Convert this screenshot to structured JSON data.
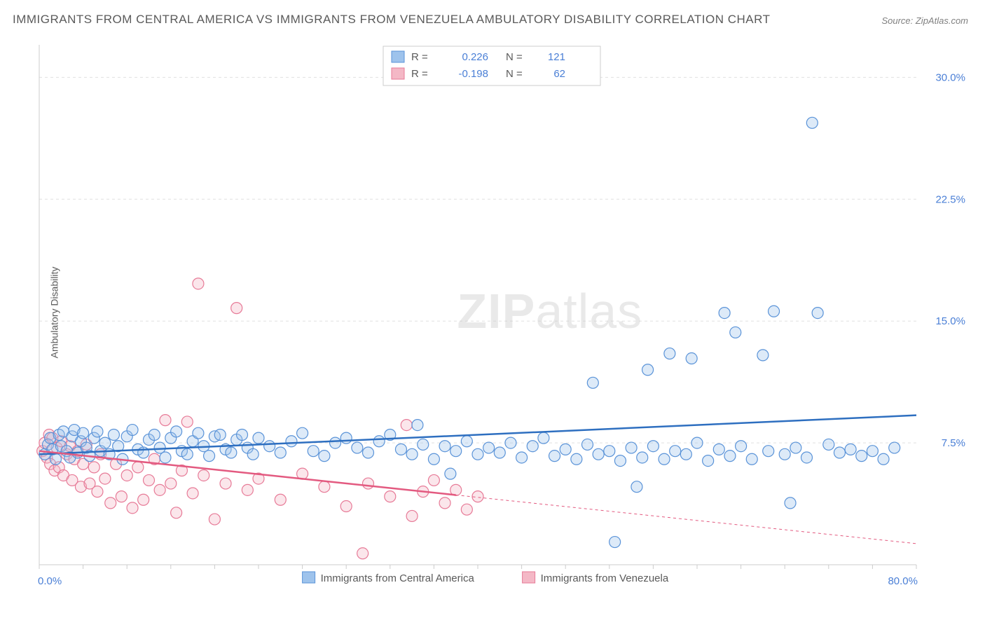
{
  "title": "IMMIGRANTS FROM CENTRAL AMERICA VS IMMIGRANTS FROM VENEZUELA AMBULATORY DISABILITY CORRELATION CHART",
  "source": "Source: ZipAtlas.com",
  "ylabel": "Ambulatory Disability",
  "watermark_a": "ZIP",
  "watermark_b": "atlas",
  "chart": {
    "type": "scatter",
    "xlim": [
      0,
      80
    ],
    "ylim": [
      0,
      32
    ],
    "yticks": [
      7.5,
      15.0,
      22.5,
      30.0
    ],
    "ytick_labels": [
      "7.5%",
      "15.0%",
      "22.5%",
      "30.0%"
    ],
    "xtick_left": "0.0%",
    "xtick_right": "80.0%",
    "xticks_minor": [
      0,
      4,
      8,
      12,
      16,
      20,
      24,
      28,
      32,
      36,
      40,
      44,
      48,
      52,
      56,
      60,
      64,
      68,
      72,
      76,
      80
    ],
    "marker_radius": 8,
    "background": "#ffffff",
    "grid_color": "#e0e0e0",
    "axis_color": "#cccccc",
    "series": [
      {
        "name": "Immigrants from Central America",
        "fill": "#9ec3ec",
        "stroke": "#5a93d8",
        "trend_color": "#2e6fc0",
        "R": "0.226",
        "N": "121",
        "trend": {
          "x1": 0,
          "y1": 6.8,
          "x2": 80,
          "y2": 9.2,
          "solid_to_x": 80
        },
        "points": [
          [
            0.5,
            6.8
          ],
          [
            0.8,
            7.4
          ],
          [
            1.0,
            7.8
          ],
          [
            1.2,
            7.1
          ],
          [
            1.5,
            6.5
          ],
          [
            1.8,
            8.0
          ],
          [
            2.0,
            7.3
          ],
          [
            2.2,
            8.2
          ],
          [
            2.5,
            7.0
          ],
          [
            2.8,
            6.6
          ],
          [
            3.0,
            7.9
          ],
          [
            3.2,
            8.3
          ],
          [
            3.5,
            6.9
          ],
          [
            3.8,
            7.6
          ],
          [
            4.0,
            8.1
          ],
          [
            4.3,
            7.2
          ],
          [
            4.6,
            6.7
          ],
          [
            5.0,
            7.8
          ],
          [
            5.3,
            8.2
          ],
          [
            5.6,
            7.0
          ],
          [
            6.0,
            7.5
          ],
          [
            6.4,
            6.8
          ],
          [
            6.8,
            8.0
          ],
          [
            7.2,
            7.3
          ],
          [
            7.6,
            6.5
          ],
          [
            8.0,
            7.9
          ],
          [
            8.5,
            8.3
          ],
          [
            9.0,
            7.1
          ],
          [
            9.5,
            6.9
          ],
          [
            10.0,
            7.7
          ],
          [
            10.5,
            8.0
          ],
          [
            11.0,
            7.2
          ],
          [
            11.5,
            6.6
          ],
          [
            12.0,
            7.8
          ],
          [
            12.5,
            8.2
          ],
          [
            13.0,
            7.0
          ],
          [
            13.5,
            6.8
          ],
          [
            14.0,
            7.6
          ],
          [
            14.5,
            8.1
          ],
          [
            15.0,
            7.3
          ],
          [
            15.5,
            6.7
          ],
          [
            16.0,
            7.9
          ],
          [
            16.5,
            8.0
          ],
          [
            17.0,
            7.1
          ],
          [
            17.5,
            6.9
          ],
          [
            18.0,
            7.7
          ],
          [
            18.5,
            8.0
          ],
          [
            19.0,
            7.2
          ],
          [
            19.5,
            6.8
          ],
          [
            20.0,
            7.8
          ],
          [
            21.0,
            7.3
          ],
          [
            22.0,
            6.9
          ],
          [
            23.0,
            7.6
          ],
          [
            24.0,
            8.1
          ],
          [
            25.0,
            7.0
          ],
          [
            26.0,
            6.7
          ],
          [
            27.0,
            7.5
          ],
          [
            28.0,
            7.8
          ],
          [
            29.0,
            7.2
          ],
          [
            30.0,
            6.9
          ],
          [
            31.0,
            7.6
          ],
          [
            32.0,
            8.0
          ],
          [
            33.0,
            7.1
          ],
          [
            34.0,
            6.8
          ],
          [
            34.5,
            8.6
          ],
          [
            35.0,
            7.4
          ],
          [
            36.0,
            6.5
          ],
          [
            37.0,
            7.3
          ],
          [
            37.5,
            5.6
          ],
          [
            38.0,
            7.0
          ],
          [
            39.0,
            7.6
          ],
          [
            40.0,
            6.8
          ],
          [
            41.0,
            7.2
          ],
          [
            42.0,
            6.9
          ],
          [
            43.0,
            7.5
          ],
          [
            44.0,
            6.6
          ],
          [
            45.0,
            7.3
          ],
          [
            46.0,
            7.8
          ],
          [
            47.0,
            6.7
          ],
          [
            48.0,
            7.1
          ],
          [
            49.0,
            6.5
          ],
          [
            50.0,
            7.4
          ],
          [
            50.5,
            11.2
          ],
          [
            51.0,
            6.8
          ],
          [
            52.0,
            7.0
          ],
          [
            52.5,
            1.4
          ],
          [
            53.0,
            6.4
          ],
          [
            54.0,
            7.2
          ],
          [
            54.5,
            4.8
          ],
          [
            55.0,
            6.6
          ],
          [
            55.5,
            12.0
          ],
          [
            56.0,
            7.3
          ],
          [
            57.0,
            6.5
          ],
          [
            57.5,
            13.0
          ],
          [
            58.0,
            7.0
          ],
          [
            59.0,
            6.8
          ],
          [
            59.5,
            12.7
          ],
          [
            60.0,
            7.5
          ],
          [
            61.0,
            6.4
          ],
          [
            62.0,
            7.1
          ],
          [
            62.5,
            15.5
          ],
          [
            63.0,
            6.7
          ],
          [
            63.5,
            14.3
          ],
          [
            64.0,
            7.3
          ],
          [
            65.0,
            6.5
          ],
          [
            66.0,
            12.9
          ],
          [
            66.5,
            7.0
          ],
          [
            67.0,
            15.6
          ],
          [
            68.0,
            6.8
          ],
          [
            68.5,
            3.8
          ],
          [
            69.0,
            7.2
          ],
          [
            70.0,
            6.6
          ],
          [
            70.5,
            27.2
          ],
          [
            71.0,
            15.5
          ],
          [
            72.0,
            7.4
          ],
          [
            73.0,
            6.9
          ],
          [
            74.0,
            7.1
          ],
          [
            75.0,
            6.7
          ],
          [
            76.0,
            7.0
          ],
          [
            77.0,
            6.5
          ],
          [
            78.0,
            7.2
          ]
        ]
      },
      {
        "name": "Immigrants from Venezuela",
        "fill": "#f4b8c6",
        "stroke": "#e77a97",
        "trend_color": "#e35a80",
        "R": "-0.198",
        "N": "62",
        "trend": {
          "x1": 0,
          "y1": 7.0,
          "x2": 80,
          "y2": 1.3,
          "solid_to_x": 38
        },
        "points": [
          [
            0.3,
            7.0
          ],
          [
            0.5,
            7.5
          ],
          [
            0.7,
            6.6
          ],
          [
            0.9,
            8.0
          ],
          [
            1.0,
            6.2
          ],
          [
            1.2,
            7.8
          ],
          [
            1.4,
            5.8
          ],
          [
            1.6,
            7.2
          ],
          [
            1.8,
            6.0
          ],
          [
            2.0,
            7.6
          ],
          [
            2.2,
            5.5
          ],
          [
            2.5,
            6.8
          ],
          [
            2.8,
            7.3
          ],
          [
            3.0,
            5.2
          ],
          [
            3.2,
            6.5
          ],
          [
            3.5,
            7.0
          ],
          [
            3.8,
            4.8
          ],
          [
            4.0,
            6.2
          ],
          [
            4.3,
            7.4
          ],
          [
            4.6,
            5.0
          ],
          [
            5.0,
            6.0
          ],
          [
            5.3,
            4.5
          ],
          [
            5.6,
            6.8
          ],
          [
            6.0,
            5.3
          ],
          [
            6.5,
            3.8
          ],
          [
            7.0,
            6.2
          ],
          [
            7.5,
            4.2
          ],
          [
            8.0,
            5.5
          ],
          [
            8.5,
            3.5
          ],
          [
            9.0,
            6.0
          ],
          [
            9.5,
            4.0
          ],
          [
            10.0,
            5.2
          ],
          [
            10.5,
            6.5
          ],
          [
            11.0,
            4.6
          ],
          [
            11.5,
            8.9
          ],
          [
            12.0,
            5.0
          ],
          [
            12.5,
            3.2
          ],
          [
            13.0,
            5.8
          ],
          [
            13.5,
            8.8
          ],
          [
            14.0,
            4.4
          ],
          [
            14.5,
            17.3
          ],
          [
            15.0,
            5.5
          ],
          [
            16.0,
            2.8
          ],
          [
            17.0,
            5.0
          ],
          [
            18.0,
            15.8
          ],
          [
            19.0,
            4.6
          ],
          [
            20.0,
            5.3
          ],
          [
            22.0,
            4.0
          ],
          [
            24.0,
            5.6
          ],
          [
            26.0,
            4.8
          ],
          [
            28.0,
            3.6
          ],
          [
            29.5,
            0.7
          ],
          [
            30.0,
            5.0
          ],
          [
            32.0,
            4.2
          ],
          [
            33.5,
            8.6
          ],
          [
            34.0,
            3.0
          ],
          [
            35.0,
            4.5
          ],
          [
            36.0,
            5.2
          ],
          [
            37.0,
            3.8
          ],
          [
            38.0,
            4.6
          ],
          [
            39.0,
            3.4
          ],
          [
            40.0,
            4.2
          ]
        ]
      }
    ],
    "legend": {
      "bottom_y": 0
    }
  },
  "stat_box": {
    "r_label": "R =",
    "n_label": "N ="
  }
}
